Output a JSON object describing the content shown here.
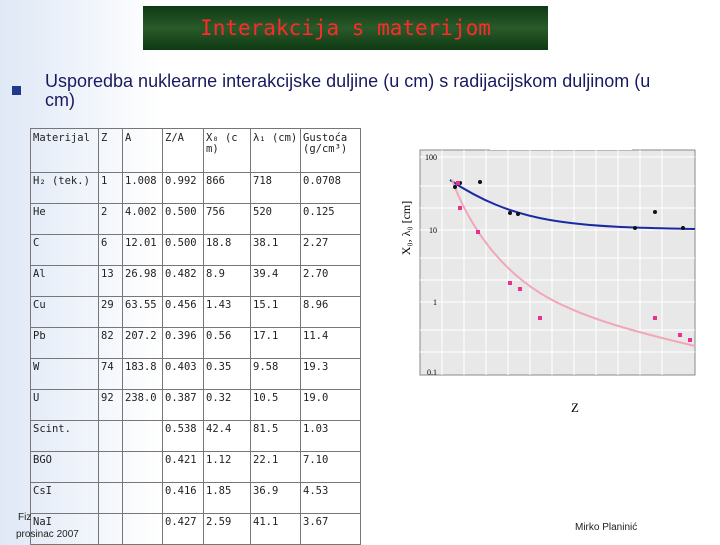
{
  "header": {
    "title": "Interakcija s materijom"
  },
  "bullet": "Usporedba nuklearne interakcijske duljine (u cm) s radijacijskom duljinom (u cm)",
  "table": {
    "columns": [
      "Materijal",
      "Z",
      "A",
      "Z/A",
      "X₀ (cm)",
      "λ₁ (cm)",
      "Gustoća (g/cm³)"
    ],
    "rows": [
      [
        "H₂ (tek.)",
        "1",
        "1.008",
        "0.992",
        "866",
        "718",
        "0.0708"
      ],
      [
        "He",
        "2",
        "4.002",
        "0.500",
        "756",
        "520",
        "0.125"
      ],
      [
        "C",
        "6",
        "12.01",
        "0.500",
        "18.8",
        "38.1",
        "2.27"
      ],
      [
        "Al",
        "13",
        "26.98",
        "0.482",
        "8.9",
        "39.4",
        "2.70"
      ],
      [
        "Cu",
        "29",
        "63.55",
        "0.456",
        "1.43",
        "15.1",
        "8.96"
      ],
      [
        "Pb",
        "82",
        "207.2",
        "0.396",
        "0.56",
        "17.1",
        "11.4"
      ],
      [
        "W",
        "74",
        "183.8",
        "0.403",
        "0.35",
        "9.58",
        "19.3"
      ],
      [
        "U",
        "92",
        "238.0",
        "0.387",
        "0.32",
        "10.5",
        "19.0"
      ],
      [
        "Scint.",
        "",
        "",
        "0.538",
        "42.4",
        "81.5",
        "1.03"
      ],
      [
        "BGO",
        "",
        "",
        "0.421",
        "1.12",
        "22.1",
        "7.10"
      ],
      [
        "CsI",
        "",
        "",
        "0.416",
        "1.85",
        "36.9",
        "4.53"
      ],
      [
        "NaI",
        "",
        "",
        "0.427",
        "2.59",
        "41.1",
        "3.67"
      ]
    ]
  },
  "figure": {
    "y_label": "X₀, λ₀ [cm]",
    "x_label": "Z",
    "yticks": [
      "100",
      "10",
      "1",
      "0.1"
    ]
  },
  "footer": {
    "left_top": "Fiz",
    "date": "prosinac 2007",
    "author": "Mirko Planinić"
  }
}
